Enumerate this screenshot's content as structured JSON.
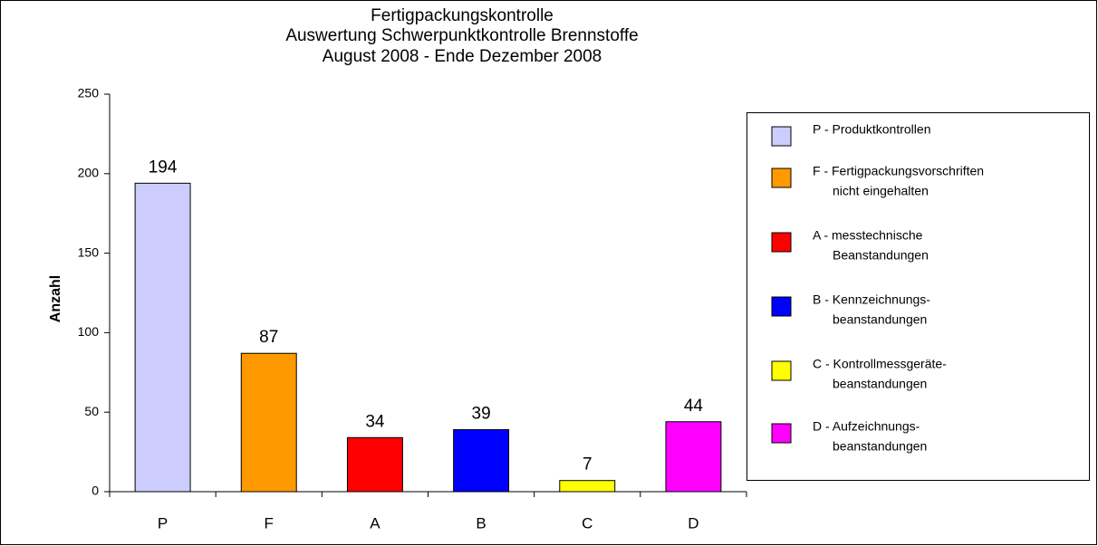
{
  "chart_data": {
    "type": "bar",
    "title": [
      "Fertigpackungskontrolle",
      "Auswertung Schwerpunktkontrolle Brennstoffe",
      "August 2008 - Ende Dezember 2008"
    ],
    "ylabel": "Anzahl",
    "categories": [
      "P",
      "F",
      "A",
      "B",
      "C",
      "D"
    ],
    "values": [
      194,
      87,
      34,
      39,
      7,
      44
    ],
    "colors": [
      "#ccccff",
      "#ff9900",
      "#ff0000",
      "#0000ff",
      "#ffff00",
      "#ff00ff"
    ],
    "legend": [
      [
        "P - Produktkontrollen"
      ],
      [
        "F - Fertigpackungsvorschriften",
        "nicht eingehalten"
      ],
      [
        "A - messtechnische",
        "Beanstandungen"
      ],
      [
        "B - Kennzeichnungs-",
        "beanstandungen"
      ],
      [
        "C - Kontrollmessgeräte-",
        "beanstandungen"
      ],
      [
        "D - Aufzeichnungs-",
        "beanstandungen"
      ]
    ],
    "ylim": [
      0,
      250
    ],
    "yticks": [
      0,
      50,
      100,
      150,
      200,
      250
    ]
  }
}
